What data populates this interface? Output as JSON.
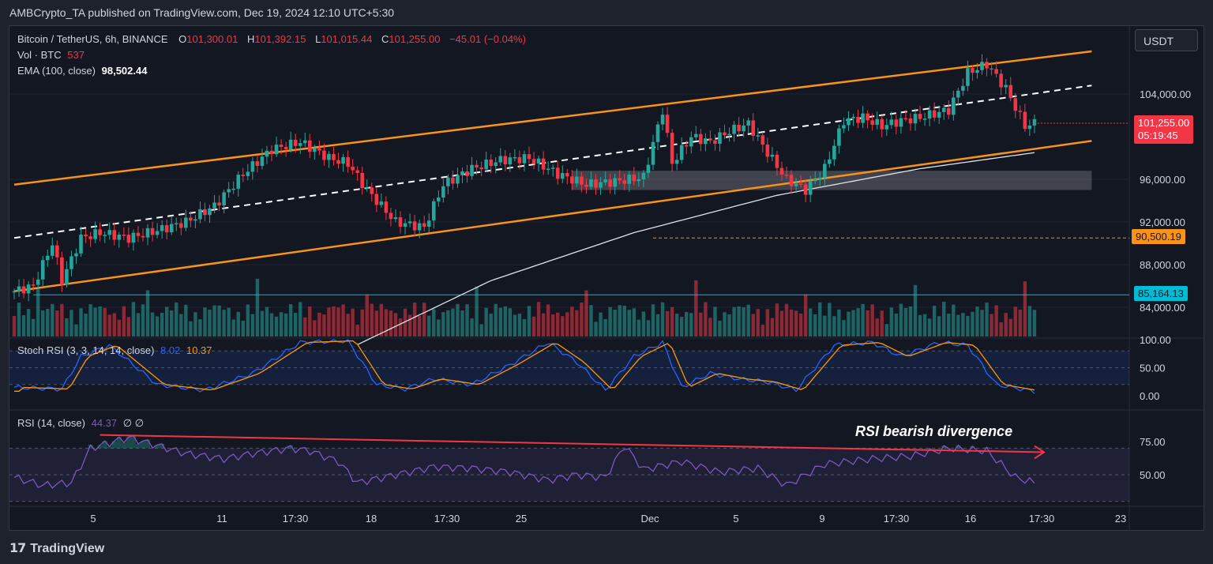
{
  "header": {
    "published": "AMBCrypto_TA published on TradingView.com, Dec 19, 2024 12:10 UTC+5:30"
  },
  "legend": {
    "symbol": "Bitcoin / TetherUS, 6h, BINANCE",
    "o_label": "O",
    "o": "101,300.01",
    "h_label": "H",
    "h": "101,392.15",
    "l_label": "L",
    "l": "101,015.44",
    "c_label": "C",
    "c": "101,255.00",
    "change": "−45.01 (−0.04%)",
    "vol_label": "Vol · BTC",
    "vol": "537",
    "ema_label": "EMA (100, close)",
    "ema": "98,502.44",
    "stoch_label": "Stoch RSI (3, 3, 14, 14, close)",
    "stoch_k": "8.02",
    "stoch_d": "10.37",
    "rsi_label": "RSI (14, close)",
    "rsi": "44.37",
    "rsi_extra": "∅ ∅"
  },
  "currency_button": "USDT",
  "price_tags": {
    "last": "101,255.00",
    "countdown": "05:19:45",
    "support_low": "90,500.19",
    "support_line": "85,164.13"
  },
  "annotation": "RSI bearish divergence",
  "footer": {
    "brand": "TradingView",
    "logo": "17"
  },
  "colors": {
    "up": "#26a69a",
    "down": "#f23645",
    "channel": "#f7931a",
    "ema": "#e0e3eb",
    "stoch_k": "#2962ff",
    "stoch_d": "#ff9800",
    "rsi": "#7e57c2",
    "support": "#00bcd4",
    "zone": "#787b86",
    "divergence": "#f23645"
  },
  "chart_data": {
    "type": "candlestick",
    "symbol": "Bitcoin / TetherUS",
    "interval": "6h",
    "y_axis": {
      "ticks": [
        84000,
        88000,
        92000,
        96000,
        104000
      ],
      "range": [
        80500,
        107500
      ]
    },
    "x_axis": {
      "ticks": [
        "5",
        "11",
        "17:30",
        "18",
        "17:30",
        "25",
        "Dec",
        "5",
        "9",
        "17:30",
        "16",
        "17:30",
        "23"
      ]
    },
    "price_path": [
      [
        0,
        85500
      ],
      [
        4,
        86000
      ],
      [
        8,
        90000
      ],
      [
        10,
        86500
      ],
      [
        14,
        90500
      ],
      [
        18,
        91000
      ],
      [
        24,
        90500
      ],
      [
        30,
        91200
      ],
      [
        36,
        92000
      ],
      [
        42,
        93500
      ],
      [
        48,
        96500
      ],
      [
        54,
        98800
      ],
      [
        60,
        99500
      ],
      [
        66,
        98000
      ],
      [
        70,
        97500
      ],
      [
        74,
        95000
      ],
      [
        80,
        92000
      ],
      [
        86,
        91500
      ],
      [
        90,
        95500
      ],
      [
        96,
        97000
      ],
      [
        102,
        97800
      ],
      [
        108,
        98000
      ],
      [
        114,
        96500
      ],
      [
        120,
        95500
      ],
      [
        126,
        95800
      ],
      [
        132,
        96200
      ],
      [
        136,
        102500
      ],
      [
        138,
        97500
      ],
      [
        142,
        100000
      ],
      [
        146,
        99500
      ],
      [
        150,
        100500
      ],
      [
        154,
        101200
      ],
      [
        158,
        98500
      ],
      [
        162,
        96000
      ],
      [
        166,
        95000
      ],
      [
        170,
        97000
      ],
      [
        174,
        101500
      ],
      [
        178,
        101800
      ],
      [
        182,
        101000
      ],
      [
        186,
        101500
      ],
      [
        190,
        101800
      ],
      [
        196,
        102500
      ],
      [
        200,
        106000
      ],
      [
        204,
        106800
      ],
      [
        208,
        104500
      ],
      [
        212,
        101000
      ],
      [
        214,
        101255
      ]
    ],
    "channel_upper": [
      [
        0,
        95500
      ],
      [
        226,
        108000
      ]
    ],
    "channel_lower": [
      [
        0,
        85500
      ],
      [
        226,
        99600
      ]
    ],
    "channel_mid": [
      [
        0,
        90500
      ],
      [
        226,
        104800
      ]
    ],
    "ema_100": [
      [
        72,
        80500
      ],
      [
        100,
        86500
      ],
      [
        130,
        91000
      ],
      [
        160,
        94500
      ],
      [
        190,
        97000
      ],
      [
        214,
        98502
      ]
    ],
    "zone": [
      95000,
      96800
    ],
    "horizontal_levels": [
      90500.19,
      85164.13
    ],
    "stoch_rsi": {
      "ticks": [
        0,
        50,
        100
      ],
      "k": 8.02,
      "d": 10.37,
      "path": [
        [
          0,
          15
        ],
        [
          10,
          12
        ],
        [
          14,
          70
        ],
        [
          20,
          90
        ],
        [
          30,
          20
        ],
        [
          40,
          10
        ],
        [
          50,
          40
        ],
        [
          60,
          95
        ],
        [
          70,
          98
        ],
        [
          76,
          20
        ],
        [
          82,
          12
        ],
        [
          88,
          30
        ],
        [
          96,
          20
        ],
        [
          104,
          55
        ],
        [
          112,
          95
        ],
        [
          118,
          60
        ],
        [
          124,
          10
        ],
        [
          130,
          70
        ],
        [
          136,
          95
        ],
        [
          140,
          15
        ],
        [
          146,
          40
        ],
        [
          152,
          30
        ],
        [
          158,
          25
        ],
        [
          164,
          10
        ],
        [
          172,
          90
        ],
        [
          180,
          95
        ],
        [
          186,
          70
        ],
        [
          194,
          95
        ],
        [
          200,
          90
        ],
        [
          206,
          20
        ],
        [
          214,
          8
        ]
      ]
    },
    "rsi": {
      "ticks": [
        50,
        75
      ],
      "value": 44.37,
      "path": [
        [
          0,
          48
        ],
        [
          6,
          42
        ],
        [
          12,
          44
        ],
        [
          16,
          70
        ],
        [
          24,
          78
        ],
        [
          30,
          72
        ],
        [
          36,
          66
        ],
        [
          44,
          62
        ],
        [
          50,
          66
        ],
        [
          58,
          70
        ],
        [
          62,
          68
        ],
        [
          68,
          60
        ],
        [
          72,
          44
        ],
        [
          80,
          50
        ],
        [
          88,
          56
        ],
        [
          96,
          55
        ],
        [
          104,
          52
        ],
        [
          112,
          46
        ],
        [
          118,
          50
        ],
        [
          124,
          48
        ],
        [
          128,
          72
        ],
        [
          132,
          54
        ],
        [
          140,
          60
        ],
        [
          148,
          52
        ],
        [
          156,
          55
        ],
        [
          162,
          42
        ],
        [
          170,
          58
        ],
        [
          180,
          62
        ],
        [
          188,
          64
        ],
        [
          196,
          70
        ],
        [
          204,
          68
        ],
        [
          210,
          48
        ],
        [
          214,
          44
        ]
      ]
    },
    "divergence_line": {
      "from": [
        18,
        80
      ],
      "to": [
        216,
        67
      ]
    }
  }
}
